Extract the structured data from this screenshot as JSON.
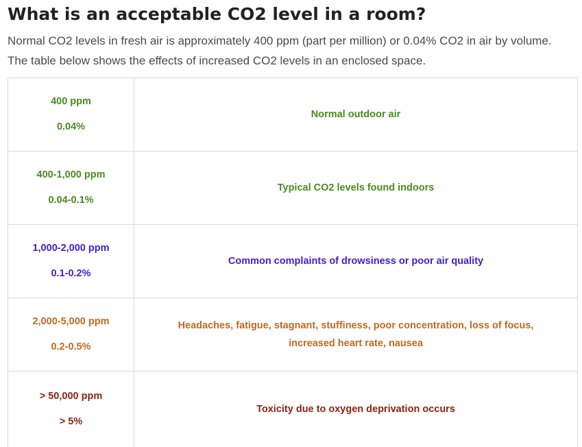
{
  "title": "What is an acceptable CO2 level in a room?",
  "intro": {
    "line1": "Normal CO2 levels in fresh air is approximately 400 ppm (part per million) or 0.04% CO2 in air by volume.",
    "line2": "The table below shows the effects of increased CO2 levels in an enclosed space."
  },
  "table": {
    "rows": [
      {
        "ppm": "400 ppm",
        "percent": "0.04%",
        "effect": "Normal outdoor air",
        "color": "#4a8a1f"
      },
      {
        "ppm": "400-1,000 ppm",
        "percent": "0.04-0.1%",
        "effect": "Typical CO2 levels found indoors",
        "color": "#4a8a1f"
      },
      {
        "ppm": "1,000-2,000 ppm",
        "percent": "0.1-0.2%",
        "effect": "Common complaints of drowsiness or poor air quality",
        "color": "#3a1fd6"
      },
      {
        "ppm": "2,000-5,000 ppm",
        "percent": "0.2-0.5%",
        "effect": "Headaches, fatigue, stagnant, stuffiness, poor concentration, loss of focus, increased heart rate, nausea",
        "color": "#c06a1e"
      },
      {
        "ppm": "> 50,000 ppm",
        "percent": "> 5%",
        "effect": "Toxicity due to oxygen deprivation occurs",
        "color": "#8c2312"
      }
    ]
  }
}
